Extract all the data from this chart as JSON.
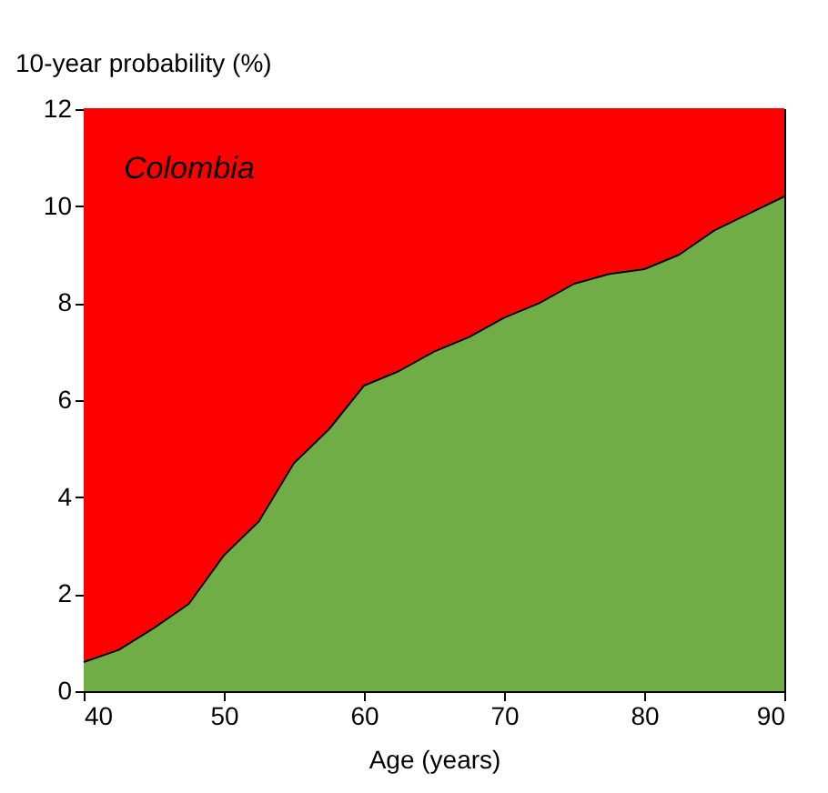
{
  "chart_data": {
    "type": "area",
    "stacked": true,
    "xlabel": "Age (years)",
    "ylabel": "10-year probability (%)",
    "annotations": [
      "Colombia"
    ],
    "x": [
      40,
      42.5,
      45,
      47.5,
      50,
      52.5,
      55,
      57.5,
      60,
      62.5,
      65,
      67.5,
      70,
      72.5,
      75,
      77.5,
      80,
      82.5,
      85,
      87.5,
      90
    ],
    "series": [
      {
        "color": "#70ad47",
        "values": [
          0.6,
          0.85,
          1.3,
          1.8,
          2.8,
          3.5,
          4.7,
          5.4,
          6.3,
          6.6,
          7.0,
          7.3,
          7.7,
          8.0,
          8.4,
          8.6,
          8.7,
          9.0,
          9.5,
          9.85,
          10.2
        ]
      },
      {
        "color": "#ff0000",
        "values": [
          11.4,
          11.15,
          10.7,
          10.2,
          9.2,
          8.5,
          7.3,
          6.6,
          5.7,
          5.4,
          5.0,
          4.7,
          4.3,
          4.0,
          3.6,
          3.4,
          3.3,
          3.0,
          2.5,
          2.15,
          1.8
        ]
      }
    ],
    "xlim": [
      40,
      90
    ],
    "xticks": [
      40,
      50,
      60,
      70,
      80,
      90
    ],
    "ylim": [
      0,
      12
    ],
    "yticks": [
      0,
      2,
      4,
      6,
      8,
      10,
      12
    ],
    "grid": false,
    "legend": false
  }
}
